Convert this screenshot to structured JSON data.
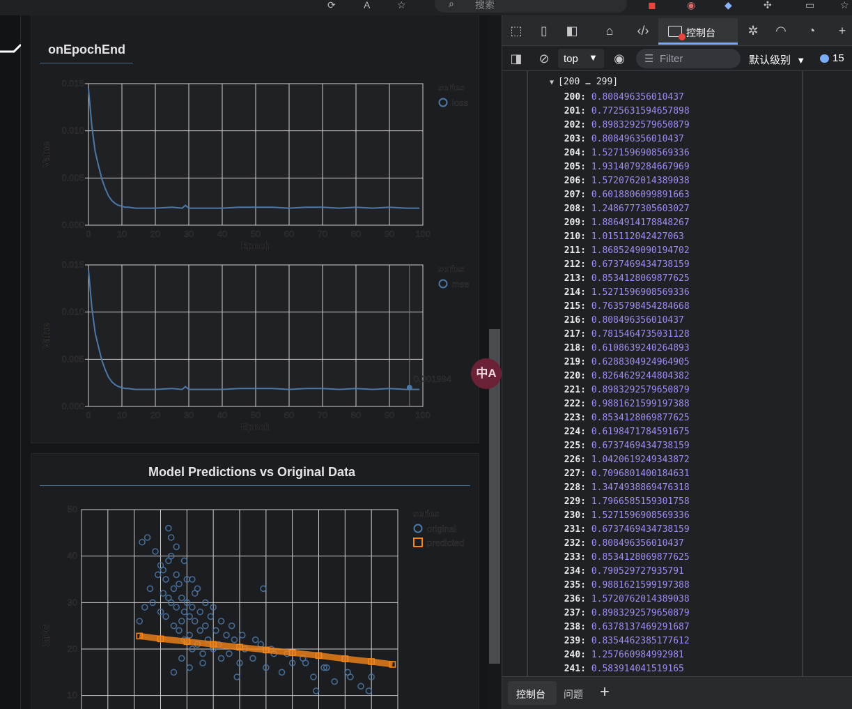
{
  "browser": {
    "search_label": "搜索",
    "colors": {
      "strip": "#202124"
    }
  },
  "page": {
    "epoch_section_title": "onEpochEnd",
    "pred_section_title": "Model Predictions vs Original Data",
    "translate_button_label": "中A"
  },
  "chart_data": [
    {
      "type": "line",
      "title": "",
      "xlabel": "Epoch",
      "ylabel": "Value",
      "xlim": [
        0,
        100
      ],
      "ylim": [
        0,
        0.015
      ],
      "x_ticks": [
        "0",
        "10",
        "20",
        "30",
        "40",
        "50",
        "60",
        "70",
        "80",
        "90",
        "100"
      ],
      "y_ticks": [
        "0.000",
        "0.005",
        "0.010",
        "0.015"
      ],
      "legend_title": "series",
      "legend_position": "top-right",
      "grid": true,
      "series": [
        {
          "name": "loss",
          "color": "#4c78a8",
          "x": [
            0,
            1,
            2,
            3,
            4,
            5,
            6,
            7,
            8,
            9,
            10,
            11,
            12,
            14,
            16,
            18,
            20,
            25,
            28,
            29,
            30,
            35,
            40,
            45,
            50,
            55,
            60,
            65,
            70,
            75,
            80,
            85,
            90,
            95,
            99
          ],
          "values": [
            0.0145,
            0.0105,
            0.0078,
            0.0063,
            0.0049,
            0.0039,
            0.0031,
            0.0026,
            0.0023,
            0.0021,
            0.002,
            0.0019,
            0.0019,
            0.0018,
            0.0018,
            0.0018,
            0.0018,
            0.0019,
            0.0018,
            0.0021,
            0.0018,
            0.0018,
            0.0018,
            0.0019,
            0.0019,
            0.0019,
            0.0018,
            0.0019,
            0.0019,
            0.0018,
            0.0019,
            0.0018,
            0.0019,
            0.0018,
            0.0018
          ]
        }
      ]
    },
    {
      "type": "line",
      "title": "",
      "xlabel": "Epoch",
      "ylabel": "Value",
      "xlim": [
        0,
        100
      ],
      "ylim": [
        0,
        0.015
      ],
      "x_ticks": [
        "0",
        "10",
        "20",
        "30",
        "40",
        "50",
        "60",
        "70",
        "80",
        "90",
        "100"
      ],
      "y_ticks": [
        "0.000",
        "0.005",
        "0.010",
        "0.015"
      ],
      "legend_title": "series",
      "legend_position": "top-right",
      "grid": true,
      "tooltip": {
        "x": 96,
        "value": 0.001994,
        "label": "0.001994"
      },
      "series": [
        {
          "name": "mse",
          "color": "#4c78a8",
          "x": [
            0,
            1,
            2,
            3,
            4,
            5,
            6,
            7,
            8,
            9,
            10,
            11,
            12,
            14,
            16,
            18,
            20,
            25,
            28,
            29,
            30,
            35,
            40,
            45,
            50,
            55,
            60,
            65,
            70,
            75,
            80,
            85,
            90,
            95,
            99
          ],
          "values": [
            0.0145,
            0.0105,
            0.0078,
            0.0063,
            0.0049,
            0.0039,
            0.0031,
            0.0026,
            0.0023,
            0.0021,
            0.002,
            0.0019,
            0.0019,
            0.0018,
            0.0018,
            0.0018,
            0.0018,
            0.0019,
            0.0018,
            0.0021,
            0.0018,
            0.0018,
            0.0018,
            0.0019,
            0.0019,
            0.0019,
            0.0018,
            0.0019,
            0.0019,
            0.0018,
            0.0019,
            0.0018,
            0.0019,
            0.0018,
            0.0018
          ]
        }
      ]
    },
    {
      "type": "scatter",
      "title": "Model Predictions vs Original Data",
      "xlabel": "",
      "ylabel": "MPG",
      "xlim": [
        0,
        12
      ],
      "ylim": [
        5,
        50
      ],
      "y_ticks": [
        "10",
        "20",
        "30",
        "40",
        "50"
      ],
      "legend_title": "series",
      "legend_position": "top-right",
      "grid": true,
      "series": [
        {
          "name": "original",
          "color": "#4c78a8",
          "marker": "circle",
          "x": [
            2.2,
            2.3,
            2.5,
            2.6,
            2.8,
            2.9,
            3.0,
            3.0,
            3.1,
            3.2,
            3.2,
            3.3,
            3.3,
            3.4,
            3.4,
            3.5,
            3.5,
            3.6,
            3.6,
            3.7,
            3.7,
            3.8,
            3.8,
            3.9,
            3.9,
            4.0,
            4.0,
            4.1,
            4.1,
            4.2,
            4.2,
            4.3,
            4.3,
            4.4,
            4.5,
            4.5,
            4.6,
            4.7,
            4.8,
            4.9,
            5.0,
            5.1,
            5.2,
            5.3,
            5.5,
            5.6,
            5.8,
            6.0,
            6.2,
            6.5,
            6.8,
            7.0,
            7.3,
            7.6,
            8.0,
            8.4,
            8.8,
            9.2,
            9.6,
            10.1,
            10.6,
            11.0,
            3.1,
            3.4,
            3.6,
            3.9,
            4.2,
            4.4,
            4.7,
            5.0,
            5.3,
            5.7,
            6.1,
            6.6,
            7.2,
            7.8,
            8.5,
            9.3,
            10.2,
            2.4,
            2.7,
            3.5,
            3.8,
            4.1,
            4.6,
            6.9,
            8.9,
            10.9,
            5.9,
            3.3
          ],
          "values": [
            26,
            43,
            44,
            33,
            41,
            36,
            28,
            38,
            32,
            35,
            27,
            46,
            31,
            44,
            30,
            33,
            25,
            29,
            36,
            34,
            24,
            31,
            26,
            28,
            22,
            35,
            30,
            27,
            23,
            29,
            20,
            26,
            32,
            21,
            28,
            24,
            19,
            25,
            22,
            27,
            20,
            24,
            21,
            18,
            23,
            19,
            22,
            17,
            20,
            18,
            21,
            16,
            19,
            15,
            17,
            18,
            14,
            16,
            13,
            15,
            12,
            14,
            37,
            40,
            42,
            39,
            35,
            33,
            30,
            29,
            26,
            25,
            23,
            22,
            20,
            19,
            17,
            16,
            14,
            29,
            30,
            15,
            18,
            16,
            17,
            33,
            11,
            11,
            14,
            39
          ]
        },
        {
          "name": "predicted",
          "color": "#f58518",
          "marker": "square",
          "x": [
            2.2,
            3.0,
            4.0,
            5.0,
            6.0,
            7.0,
            8.0,
            9.0,
            10.0,
            11.0,
            11.8
          ],
          "values": [
            22.8,
            22.2,
            21.6,
            21.0,
            20.4,
            19.8,
            19.2,
            18.6,
            17.9,
            17.3,
            16.7
          ]
        }
      ]
    }
  ],
  "devtools": {
    "tabs": {
      "console": "控制台"
    },
    "filterbar": {
      "context": "top",
      "filter_placeholder": "Filter",
      "level": "默认级别",
      "message_count": "15"
    },
    "array_header": "[200 … 299]",
    "rows": [
      {
        "idx": "200:",
        "val": "0.808496356010437"
      },
      {
        "idx": "201:",
        "val": "0.7725631594657898"
      },
      {
        "idx": "202:",
        "val": "0.8983292579650879"
      },
      {
        "idx": "203:",
        "val": "0.808496356010437"
      },
      {
        "idx": "204:",
        "val": "1.5271596908569336"
      },
      {
        "idx": "205:",
        "val": "1.9314079284667969"
      },
      {
        "idx": "206:",
        "val": "1.5720762014389038"
      },
      {
        "idx": "207:",
        "val": "0.6018806099891663"
      },
      {
        "idx": "208:",
        "val": "1.2486777305603027"
      },
      {
        "idx": "209:",
        "val": "1.8864914178848267"
      },
      {
        "idx": "210:",
        "val": "1.015112042427063"
      },
      {
        "idx": "211:",
        "val": "1.8685249090194702"
      },
      {
        "idx": "212:",
        "val": "0.6737469434738159"
      },
      {
        "idx": "213:",
        "val": "0.8534128069877625"
      },
      {
        "idx": "214:",
        "val": "1.5271596908569336"
      },
      {
        "idx": "215:",
        "val": "0.7635798454284668"
      },
      {
        "idx": "216:",
        "val": "0.808496356010437"
      },
      {
        "idx": "217:",
        "val": "0.7815464735031128"
      },
      {
        "idx": "218:",
        "val": "0.6108639240264893"
      },
      {
        "idx": "219:",
        "val": "0.6288304924964905"
      },
      {
        "idx": "220:",
        "val": "0.8264629244804382"
      },
      {
        "idx": "221:",
        "val": "0.8983292579650879"
      },
      {
        "idx": "222:",
        "val": "0.9881621599197388"
      },
      {
        "idx": "223:",
        "val": "0.8534128069877625"
      },
      {
        "idx": "224:",
        "val": "0.6198471784591675"
      },
      {
        "idx": "225:",
        "val": "0.6737469434738159"
      },
      {
        "idx": "226:",
        "val": "1.0420619249343872"
      },
      {
        "idx": "227:",
        "val": "0.7096801400184631"
      },
      {
        "idx": "228:",
        "val": "1.3474938869476318"
      },
      {
        "idx": "229:",
        "val": "1.7966585159301758"
      },
      {
        "idx": "230:",
        "val": "1.5271596908569336"
      },
      {
        "idx": "231:",
        "val": "0.6737469434738159"
      },
      {
        "idx": "232:",
        "val": "0.808496356010437"
      },
      {
        "idx": "233:",
        "val": "0.8534128069877625"
      },
      {
        "idx": "234:",
        "val": "0.790529727935791"
      },
      {
        "idx": "235:",
        "val": "0.9881621599197388"
      },
      {
        "idx": "236:",
        "val": "1.5720762014389038"
      },
      {
        "idx": "237:",
        "val": "0.8983292579650879"
      },
      {
        "idx": "238:",
        "val": "0.6378137469291687"
      },
      {
        "idx": "239:",
        "val": "0.8354462385177612"
      },
      {
        "idx": "240:",
        "val": "1.257660984992981"
      },
      {
        "idx": "241:",
        "val": "0.583914041519165"
      }
    ],
    "drawer": {
      "console_tab": "控制台",
      "issues_tab": "问题",
      "add_label": "+"
    },
    "colors": {
      "accent": "#7cacf8",
      "value": "#9e8df2",
      "error_dot": "#e8453c"
    }
  }
}
